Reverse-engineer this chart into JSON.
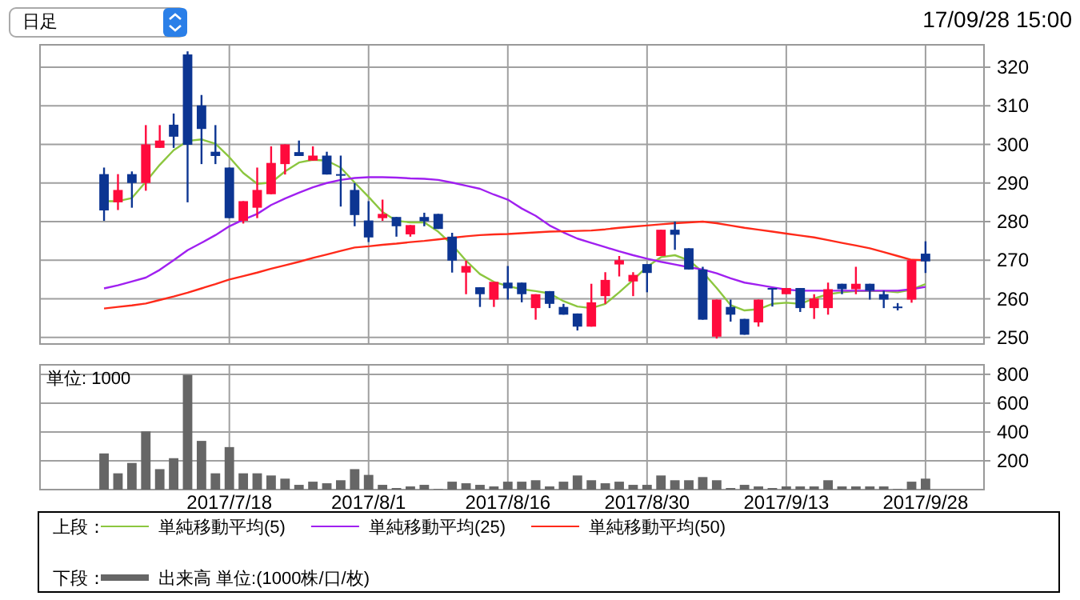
{
  "chart_data": [
    {
      "type": "candlestick",
      "legend": "bottom",
      "legend_title": "上段：",
      "grid": true,
      "tick_labels": "y",
      "annotations": [
        "日足",
        "17/09/28 15:00"
      ],
      "categories": [
        null,
        null,
        null,
        null,
        null,
        null,
        null,
        null,
        null,
        "2017/7/18",
        null,
        null,
        null,
        null,
        null,
        null,
        null,
        null,
        null,
        "2017/8/1",
        null,
        null,
        null,
        null,
        null,
        null,
        null,
        null,
        null,
        "2017/8/16",
        null,
        null,
        null,
        null,
        null,
        null,
        null,
        null,
        null,
        "2017/8/30",
        null,
        null,
        null,
        null,
        null,
        null,
        null,
        null,
        null,
        "2017/9/13",
        null,
        null,
        null,
        null,
        null,
        null,
        null,
        null,
        null,
        "2017/9/28"
      ],
      "ylim": [
        248.3,
        325.8
      ],
      "yticks": [
        250,
        260,
        270,
        280,
        290,
        300,
        310,
        320
      ],
      "ohlc": [
        [
          292.3,
          294.0,
          280.2,
          282.9
        ],
        [
          285.0,
          292.3,
          283.0,
          288.2
        ],
        [
          292.3,
          293.0,
          283.6,
          290.0
        ],
        [
          290.0,
          305.0,
          288.0,
          300.0
        ],
        [
          299.1,
          305.0,
          299.1,
          301.0
        ],
        [
          305.1,
          308.0,
          299.1,
          302.0
        ],
        [
          323.3,
          324.1,
          285.0,
          299.9
        ],
        [
          310.1,
          312.8,
          294.9,
          304.0
        ],
        [
          298.1,
          305.0,
          294.9,
          297.0
        ],
        [
          294.0,
          294.0,
          280.9,
          280.9
        ],
        [
          280.2,
          285.3,
          279.5,
          285.3
        ],
        [
          283.6,
          294.0,
          280.9,
          288.2
        ],
        [
          287.1,
          299.5,
          287.1,
          295.2
        ],
        [
          294.9,
          300.0,
          292.2,
          300.0
        ],
        [
          298.0,
          301.0,
          297.0,
          297.0
        ],
        [
          295.8,
          299.5,
          295.8,
          297.1
        ],
        [
          297.1,
          298.1,
          292.2,
          292.2
        ],
        [
          292.3,
          297.1,
          283.9,
          292.0
        ],
        [
          288.2,
          290.0,
          278.8,
          281.7
        ],
        [
          280.3,
          285.3,
          274.7,
          275.9
        ],
        [
          280.9,
          285.7,
          280.2,
          282.0
        ],
        [
          281.2,
          281.2,
          276.1,
          278.8
        ],
        [
          276.7,
          279.1,
          276.1,
          279.1
        ],
        [
          281.2,
          282.3,
          278.8,
          280.1
        ],
        [
          282.0,
          282.0,
          278.1,
          278.1
        ],
        [
          276.1,
          277.1,
          266.8,
          269.9
        ],
        [
          266.8,
          269.9,
          261.2,
          268.5
        ],
        [
          263.0,
          263.0,
          257.9,
          261.2
        ],
        [
          259.8,
          264.4,
          257.9,
          264.4
        ],
        [
          264.2,
          268.5,
          259.8,
          262.7
        ],
        [
          264.2,
          264.2,
          259.1,
          261.2
        ],
        [
          257.6,
          261.2,
          254.6,
          261.2
        ],
        [
          262.0,
          262.0,
          257.6,
          258.7
        ],
        [
          257.9,
          258.7,
          255.9,
          255.9
        ],
        [
          256.2,
          256.2,
          251.8,
          252.8
        ],
        [
          252.8,
          263.9,
          252.8,
          259.1
        ],
        [
          260.7,
          266.9,
          258.7,
          264.9
        ],
        [
          268.9,
          271.1,
          265.8,
          270.0
        ],
        [
          264.5,
          266.9,
          260.7,
          266.2
        ],
        [
          269.0,
          269.0,
          261.7,
          266.7
        ],
        [
          271.1,
          277.9,
          271.1,
          277.9
        ],
        [
          277.9,
          280.0,
          272.7,
          276.6
        ],
        [
          273.1,
          273.1,
          267.6,
          267.6
        ],
        [
          267.6,
          268.3,
          254.6,
          254.6
        ],
        [
          250.2,
          259.8,
          249.7,
          259.8
        ],
        [
          257.9,
          259.8,
          254.1,
          255.9
        ],
        [
          254.8,
          254.8,
          250.7,
          250.7
        ],
        [
          253.9,
          259.8,
          252.8,
          259.8
        ],
        [
          262.8,
          262.8,
          258.0,
          262.5
        ],
        [
          261.2,
          262.8,
          261.2,
          262.8
        ],
        [
          262.8,
          262.8,
          256.6,
          257.6
        ],
        [
          257.6,
          261.2,
          254.8,
          260.1
        ],
        [
          257.6,
          264.2,
          255.9,
          262.5
        ],
        [
          263.9,
          263.9,
          261.2,
          262.5
        ],
        [
          262.5,
          268.3,
          261.2,
          263.9
        ],
        [
          263.9,
          263.9,
          259.8,
          262.1
        ],
        [
          261.2,
          262.1,
          257.6,
          259.8
        ],
        [
          258.0,
          258.9,
          257.0,
          257.7
        ],
        [
          259.8,
          270.0,
          259.0,
          270.0
        ],
        [
          271.7,
          274.9,
          266.7,
          269.7
        ]
      ],
      "colors": [
        "#0c3592",
        "#ff0a3c",
        "#0c3592",
        "#ff0a3c",
        "#ff0a3c",
        "#0c3592",
        "#0c3592",
        "#0c3592",
        "#0c3592",
        "#0c3592",
        "#ff0a3c",
        "#ff0a3c",
        "#ff0a3c",
        "#ff0a3c",
        "#0c3592",
        "#ff0a3c",
        "#0c3592",
        "#0c3592",
        "#0c3592",
        "#0c3592",
        "#ff0a3c",
        "#0c3592",
        "#ff0a3c",
        "#0c3592",
        "#0c3592",
        "#0c3592",
        "#ff0a3c",
        "#0c3592",
        "#ff0a3c",
        "#0c3592",
        "#0c3592",
        "#ff0a3c",
        "#0c3592",
        "#0c3592",
        "#0c3592",
        "#ff0a3c",
        "#ff0a3c",
        "#ff0a3c",
        "#ff0a3c",
        "#0c3592",
        "#ff0a3c",
        "#0c3592",
        "#0c3592",
        "#0c3592",
        "#ff0a3c",
        "#0c3592",
        "#0c3592",
        "#ff0a3c",
        "#0c3592",
        "#ff0a3c",
        "#0c3592",
        "#ff0a3c",
        "#ff0a3c",
        "#0c3592",
        "#ff0a3c",
        "#0c3592",
        "#0c3592",
        "#0c3592",
        "#ff0a3c",
        "#0c3592"
      ],
      "series": [
        {
          "type": "line",
          "name": "単純移動平均(5)",
          "color": "#8cc63f",
          "values": [
            285.3,
            285.3,
            286.1,
            290.3,
            294.7,
            298.5,
            300.9,
            301.3,
            300.2,
            296.7,
            292.6,
            289.8,
            290.1,
            293.0,
            295.3,
            296.0,
            295.8,
            294.0,
            290.1,
            286.4,
            282.5,
            280.2,
            279.8,
            279.8,
            277.4,
            274.0,
            269.9,
            266.4,
            264.4,
            263.3,
            262.5,
            262.0,
            261.4,
            259.4,
            258.0,
            257.6,
            258.7,
            261.7,
            264.9,
            268.3,
            270.8,
            271.3,
            270.0,
            266.9,
            262.8,
            258.4,
            257.0,
            257.3,
            258.7,
            259.0,
            258.7,
            260.1,
            261.2,
            261.7,
            262.0,
            262.0,
            262.0,
            261.7,
            262.4,
            263.8
          ]
        },
        {
          "type": "line",
          "name": "単純移動平均(25)",
          "color": "#a020f0",
          "values": [
            262.7,
            263.5,
            264.5,
            265.5,
            267.5,
            270.0,
            272.6,
            274.5,
            276.5,
            278.8,
            280.5,
            282.0,
            284.3,
            286.0,
            287.5,
            288.9,
            290.0,
            290.8,
            291.3,
            291.5,
            291.5,
            291.4,
            291.2,
            291.1,
            290.8,
            290.1,
            289.3,
            288.5,
            287.0,
            285.7,
            283.4,
            281.5,
            279.0,
            277.2,
            275.6,
            274.5,
            273.4,
            272.3,
            271.3,
            270.4,
            269.6,
            268.9,
            268.2,
            267.6,
            266.6,
            265.3,
            264.2,
            263.6,
            263.0,
            262.4,
            262.1,
            262.1,
            262.1,
            262.1,
            262.1,
            262.1,
            262.1,
            262.1,
            262.5,
            263.1
          ]
        },
        {
          "type": "line",
          "name": "単純移動平均(50)",
          "color": "#ff2a1a",
          "values": [
            257.5,
            257.9,
            258.3,
            258.8,
            259.7,
            260.6,
            261.6,
            262.7,
            263.8,
            265.0,
            265.9,
            266.8,
            267.8,
            268.7,
            269.6,
            270.6,
            271.5,
            272.4,
            273.3,
            273.6,
            274.0,
            274.3,
            274.7,
            275.0,
            275.4,
            275.8,
            276.2,
            276.5,
            276.7,
            276.8,
            277.0,
            277.2,
            277.4,
            277.5,
            277.6,
            277.7,
            278.0,
            278.4,
            278.7,
            279.0,
            279.3,
            279.6,
            279.8,
            280.0,
            279.6,
            279.0,
            278.4,
            277.9,
            277.4,
            276.9,
            276.4,
            275.9,
            275.2,
            274.5,
            273.8,
            273.1,
            272.1,
            271.1,
            270.1,
            270.0
          ]
        }
      ]
    },
    {
      "type": "bar",
      "legend": "bottom",
      "legend_title": "下段：",
      "grid": true,
      "annotations": [
        "単位: 1000"
      ],
      "categories": [
        null,
        null,
        null,
        null,
        null,
        null,
        null,
        null,
        null,
        "2017/7/18",
        null,
        null,
        null,
        null,
        null,
        null,
        null,
        null,
        null,
        "2017/8/1",
        null,
        null,
        null,
        null,
        null,
        null,
        null,
        null,
        null,
        "2017/8/16",
        null,
        null,
        null,
        null,
        null,
        null,
        null,
        null,
        null,
        "2017/8/30",
        null,
        null,
        null,
        null,
        null,
        null,
        null,
        null,
        null,
        "2017/9/13",
        null,
        null,
        null,
        null,
        null,
        null,
        null,
        null,
        null,
        "2017/9/28"
      ],
      "ylim": [
        0,
        866
      ],
      "yticks": [
        200,
        400,
        600,
        800
      ],
      "series": [
        {
          "name": "出来高 単位:(1000株/口/枚)",
          "color": "#666666",
          "values": [
            251,
            113,
            185,
            404,
            142,
            218,
            796,
            338,
            113,
            295,
            113,
            113,
            98,
            76,
            33,
            55,
            44,
            65,
            142,
            102,
            33,
            11,
            22,
            33,
            4,
            55,
            44,
            33,
            22,
            55,
            55,
            65,
            22,
            55,
            98,
            65,
            44,
            55,
            33,
            33,
            98,
            65,
            65,
            87,
            65,
            11,
            33,
            22,
            11,
            22,
            22,
            22,
            65,
            22,
            22,
            22,
            22,
            4,
            55,
            76
          ]
        }
      ]
    }
  ]
}
